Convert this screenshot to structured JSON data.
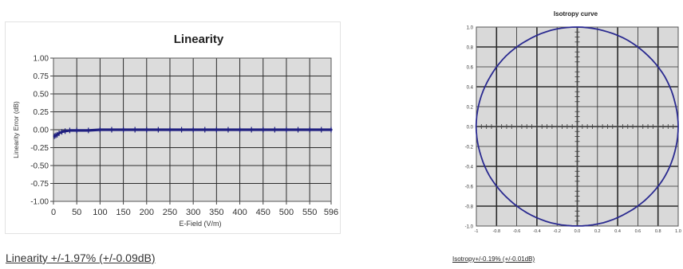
{
  "chart_data": [
    {
      "type": "line",
      "title": "Linearity",
      "xlabel": "E-Field (V/m)",
      "ylabel": "Linearity Error (dB)",
      "xticks": [
        "0",
        "50",
        "100",
        "150",
        "200",
        "250",
        "300",
        "350",
        "400",
        "450",
        "500",
        "550",
        "596"
      ],
      "yticks": [
        "1.00",
        "0.75",
        "0.50",
        "0.25",
        "0.00",
        "-0.25",
        "-0.50",
        "-0.75",
        "-1.00"
      ],
      "xlim": [
        0,
        596
      ],
      "ylim": [
        -1.0,
        1.0
      ],
      "grid": true,
      "legend": "none",
      "color": "#1f1f80",
      "series": [
        {
          "x": [
            2,
            5,
            8,
            12,
            18,
            25,
            35,
            50,
            75,
            100,
            125,
            150,
            175,
            200,
            225,
            250,
            275,
            300,
            325,
            350,
            375,
            400,
            425,
            450,
            475,
            500,
            525,
            550,
            575,
            596
          ],
          "y": [
            -0.09,
            -0.08,
            -0.07,
            -0.05,
            -0.03,
            -0.02,
            -0.01,
            -0.01,
            -0.01,
            0.0,
            0.0,
            0.0,
            0.0,
            0.0,
            0.0,
            0.0,
            0.0,
            0.0,
            0.0,
            0.0,
            0.0,
            0.0,
            0.0,
            0.0,
            0.0,
            0.0,
            0.0,
            0.0,
            0.0,
            0.0
          ]
        }
      ],
      "caption": "Linearity +/-1.97% (+/-0.09dB)"
    },
    {
      "type": "line",
      "title": "Isotropy curve",
      "polar": true,
      "yticks": [
        "1.0",
        "0.8",
        "0.6",
        "0.4",
        "0.2",
        "0.0",
        "-0.2",
        "-0.4",
        "-0.6",
        "-0.8",
        "-1.0"
      ],
      "xticks": [
        "-1",
        "-0.8",
        "-0.6",
        "-0.4",
        "-0.2",
        "0.0",
        "0.2",
        "0.4",
        "0.6",
        "0.8",
        "1.0"
      ],
      "xlim": [
        -1.0,
        1.0
      ],
      "ylim": [
        -1.0,
        1.0
      ],
      "grid": true,
      "color": "#2a2a90",
      "series": [
        {
          "angle_deg": [
            0,
            15,
            30,
            45,
            60,
            75,
            90,
            105,
            120,
            135,
            150,
            165,
            180,
            195,
            210,
            225,
            240,
            255,
            270,
            285,
            300,
            315,
            330,
            345
          ],
          "radius": [
            1.0,
            0.998,
            1.002,
            0.999,
            1.001,
            0.998,
            1.0,
            1.002,
            0.999,
            1.001,
            0.998,
            1.0,
            1.002,
            0.999,
            1.001,
            0.998,
            1.0,
            1.002,
            0.999,
            1.001,
            0.998,
            1.0,
            1.002,
            0.999
          ]
        }
      ],
      "caption": "Isotropy+/-0.19% (+/-0.01dB)"
    }
  ]
}
